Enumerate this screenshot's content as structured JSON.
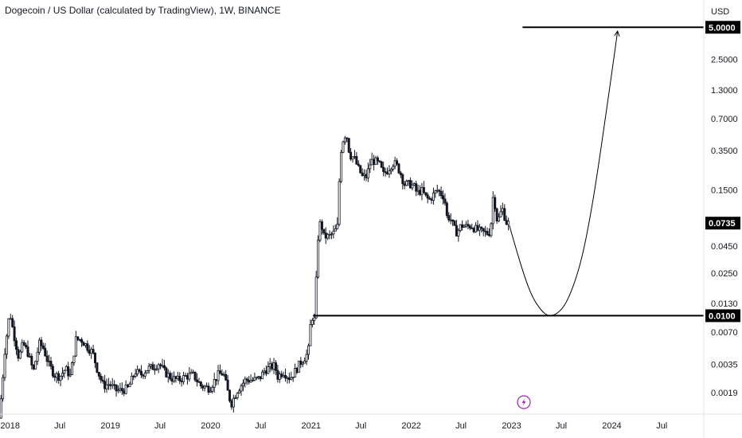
{
  "chart_data": {
    "type": "candlestick",
    "title": "Dogecoin / US Dollar (calculated by TradingView), 1W, BINANCE",
    "currency": "USD",
    "scale": "log",
    "y_ticks": [
      5.0,
      2.5,
      1.3,
      0.7,
      0.35,
      0.15,
      0.045,
      0.025,
      0.013,
      0.007,
      0.0035,
      0.0019
    ],
    "y_tick_labels": [
      "5.0000",
      "2.5000",
      "1.3000",
      "0.7000",
      "0.3500",
      "0.1500",
      "0.0450",
      "0.0250",
      "0.0130",
      "0.0070",
      "0.0035",
      "0.0019"
    ],
    "x_ticks": [
      {
        "label": "2018",
        "date": "2018-01-01"
      },
      {
        "label": "Jul",
        "date": "2018-07-01"
      },
      {
        "label": "2019",
        "date": "2019-01-01"
      },
      {
        "label": "Jul",
        "date": "2019-07-01"
      },
      {
        "label": "2020",
        "date": "2020-01-01"
      },
      {
        "label": "Jul",
        "date": "2020-07-01"
      },
      {
        "label": "2021",
        "date": "2021-01-01"
      },
      {
        "label": "Jul",
        "date": "2021-07-01"
      },
      {
        "label": "2022",
        "date": "2022-01-01"
      },
      {
        "label": "Jul",
        "date": "2022-07-01"
      },
      {
        "label": "2023",
        "date": "2023-01-01"
      },
      {
        "label": "Jul",
        "date": "2023-07-01"
      },
      {
        "label": "2024",
        "date": "2024-01-01"
      },
      {
        "label": "Jul",
        "date": "2024-07-01"
      }
    ],
    "x_range": [
      "2017-11-25",
      "2024-12-01"
    ],
    "y_range": [
      0.0012,
      9.0
    ],
    "price_path": [
      [
        "2017-11-25",
        0.0011
      ],
      [
        "2017-12-05",
        0.002
      ],
      [
        "2017-12-15",
        0.0045
      ],
      [
        "2018-01-03",
        0.011
      ],
      [
        "2018-01-12",
        0.008
      ],
      [
        "2018-01-22",
        0.006
      ],
      [
        "2018-02-05",
        0.004
      ],
      [
        "2018-02-20",
        0.0055
      ],
      [
        "2018-03-10",
        0.0045
      ],
      [
        "2018-03-30",
        0.003
      ],
      [
        "2018-04-20",
        0.0055
      ],
      [
        "2018-05-05",
        0.005
      ],
      [
        "2018-05-25",
        0.0035
      ],
      [
        "2018-06-15",
        0.0028
      ],
      [
        "2018-07-05",
        0.0027
      ],
      [
        "2018-07-25",
        0.0032
      ],
      [
        "2018-08-12",
        0.0027
      ],
      [
        "2018-09-01",
        0.006
      ],
      [
        "2018-09-20",
        0.006
      ],
      [
        "2018-10-10",
        0.0052
      ],
      [
        "2018-11-01",
        0.0045
      ],
      [
        "2018-11-20",
        0.003
      ],
      [
        "2018-12-10",
        0.0022
      ],
      [
        "2019-01-01",
        0.0023
      ],
      [
        "2019-01-25",
        0.002
      ],
      [
        "2019-02-15",
        0.002
      ],
      [
        "2019-03-10",
        0.0021
      ],
      [
        "2019-04-05",
        0.003
      ],
      [
        "2019-04-25",
        0.0028
      ],
      [
        "2019-05-20",
        0.0032
      ],
      [
        "2019-06-10",
        0.0033
      ],
      [
        "2019-06-30",
        0.0036
      ],
      [
        "2019-07-20",
        0.003
      ],
      [
        "2019-08-15",
        0.0026
      ],
      [
        "2019-09-10",
        0.0025
      ],
      [
        "2019-10-05",
        0.0027
      ],
      [
        "2019-11-01",
        0.0028
      ],
      [
        "2019-12-01",
        0.0022
      ],
      [
        "2020-01-01",
        0.0021
      ],
      [
        "2020-02-01",
        0.0028
      ],
      [
        "2020-02-20",
        0.0029
      ],
      [
        "2020-03-10",
        0.0018
      ],
      [
        "2020-03-20",
        0.0015
      ],
      [
        "2020-04-10",
        0.002
      ],
      [
        "2020-05-10",
        0.0025
      ],
      [
        "2020-06-10",
        0.0025
      ],
      [
        "2020-07-01",
        0.0026
      ],
      [
        "2020-07-20",
        0.0031
      ],
      [
        "2020-08-10",
        0.0033
      ],
      [
        "2020-08-25",
        0.0034
      ],
      [
        "2020-09-05",
        0.0027
      ],
      [
        "2020-09-25",
        0.003
      ],
      [
        "2020-10-20",
        0.0026
      ],
      [
        "2020-11-10",
        0.0031
      ],
      [
        "2020-11-25",
        0.0036
      ],
      [
        "2020-12-10",
        0.004
      ],
      [
        "2020-12-25",
        0.0045
      ],
      [
        "2021-01-05",
        0.01
      ],
      [
        "2021-01-18",
        0.009
      ],
      [
        "2021-01-28",
        0.05
      ],
      [
        "2021-02-08",
        0.078
      ],
      [
        "2021-02-20",
        0.055
      ],
      [
        "2021-03-10",
        0.055
      ],
      [
        "2021-03-30",
        0.06
      ],
      [
        "2021-04-12",
        0.07
      ],
      [
        "2021-04-20",
        0.32
      ],
      [
        "2021-05-05",
        0.5
      ],
      [
        "2021-05-15",
        0.47
      ],
      [
        "2021-05-25",
        0.32
      ],
      [
        "2021-06-10",
        0.3
      ],
      [
        "2021-06-25",
        0.24
      ],
      [
        "2021-07-10",
        0.2
      ],
      [
        "2021-07-25",
        0.2
      ],
      [
        "2021-08-10",
        0.28
      ],
      [
        "2021-08-25",
        0.28
      ],
      [
        "2021-09-10",
        0.26
      ],
      [
        "2021-09-25",
        0.21
      ],
      [
        "2021-10-10",
        0.23
      ],
      [
        "2021-10-28",
        0.27
      ],
      [
        "2021-11-10",
        0.26
      ],
      [
        "2021-11-25",
        0.22
      ],
      [
        "2021-12-10",
        0.17
      ],
      [
        "2022-01-01",
        0.17
      ],
      [
        "2022-01-15",
        0.16
      ],
      [
        "2022-01-25",
        0.14
      ],
      [
        "2022-02-10",
        0.15
      ],
      [
        "2022-02-25",
        0.13
      ],
      [
        "2022-03-10",
        0.12
      ],
      [
        "2022-03-30",
        0.14
      ],
      [
        "2022-04-10",
        0.15
      ],
      [
        "2022-04-20",
        0.14
      ],
      [
        "2022-05-05",
        0.13
      ],
      [
        "2022-05-12",
        0.085
      ],
      [
        "2022-05-25",
        0.083
      ],
      [
        "2022-06-10",
        0.065
      ],
      [
        "2022-06-20",
        0.06
      ],
      [
        "2022-07-05",
        0.07
      ],
      [
        "2022-07-25",
        0.068
      ],
      [
        "2022-08-10",
        0.07
      ],
      [
        "2022-08-25",
        0.065
      ],
      [
        "2022-09-10",
        0.062
      ],
      [
        "2022-09-25",
        0.06
      ],
      [
        "2022-10-10",
        0.059
      ],
      [
        "2022-10-20",
        0.062
      ],
      [
        "2022-10-28",
        0.13
      ],
      [
        "2022-11-05",
        0.11
      ],
      [
        "2022-11-10",
        0.08
      ],
      [
        "2022-11-20",
        0.082
      ],
      [
        "2022-11-28",
        0.095
      ],
      [
        "2022-12-05",
        0.1
      ],
      [
        "2022-12-12",
        0.08
      ],
      [
        "2022-12-18",
        0.0735
      ]
    ],
    "annotations": {
      "horizontal_lines": [
        {
          "value": 5.0,
          "label": "5.0000",
          "from_date": "2023-02-10"
        },
        {
          "value": 0.01,
          "label": "0.0100",
          "from_date": "2021-01-08"
        }
      ],
      "current_price": {
        "value": 0.0735,
        "label": "0.0735"
      },
      "projection_path": [
        [
          "2022-12-24",
          0.07
        ],
        [
          "2023-01-20",
          0.04
        ],
        [
          "2023-02-20",
          0.022
        ],
        [
          "2023-03-20",
          0.0145
        ],
        [
          "2023-04-20",
          0.0111
        ],
        [
          "2023-05-10",
          0.0101
        ],
        [
          "2023-05-25",
          0.01
        ],
        [
          "2023-06-15",
          0.0104
        ],
        [
          "2023-07-15",
          0.0125
        ],
        [
          "2023-08-15",
          0.019
        ],
        [
          "2023-09-15",
          0.035
        ],
        [
          "2023-10-15",
          0.085
        ],
        [
          "2023-11-10",
          0.22
        ],
        [
          "2023-12-10",
          0.75
        ],
        [
          "2024-01-05",
          2.2
        ],
        [
          "2024-01-22",
          4.6
        ]
      ]
    },
    "colors": {
      "candles": "#131722",
      "lines": "#000000",
      "projection": "#000000",
      "badge_bg": "#000000",
      "badge_text": "#ffffff",
      "axis_border": "#e0e3eb",
      "event_icon": "#9c27b0"
    },
    "event_marker_icon": "lightning-bolt-icon"
  }
}
